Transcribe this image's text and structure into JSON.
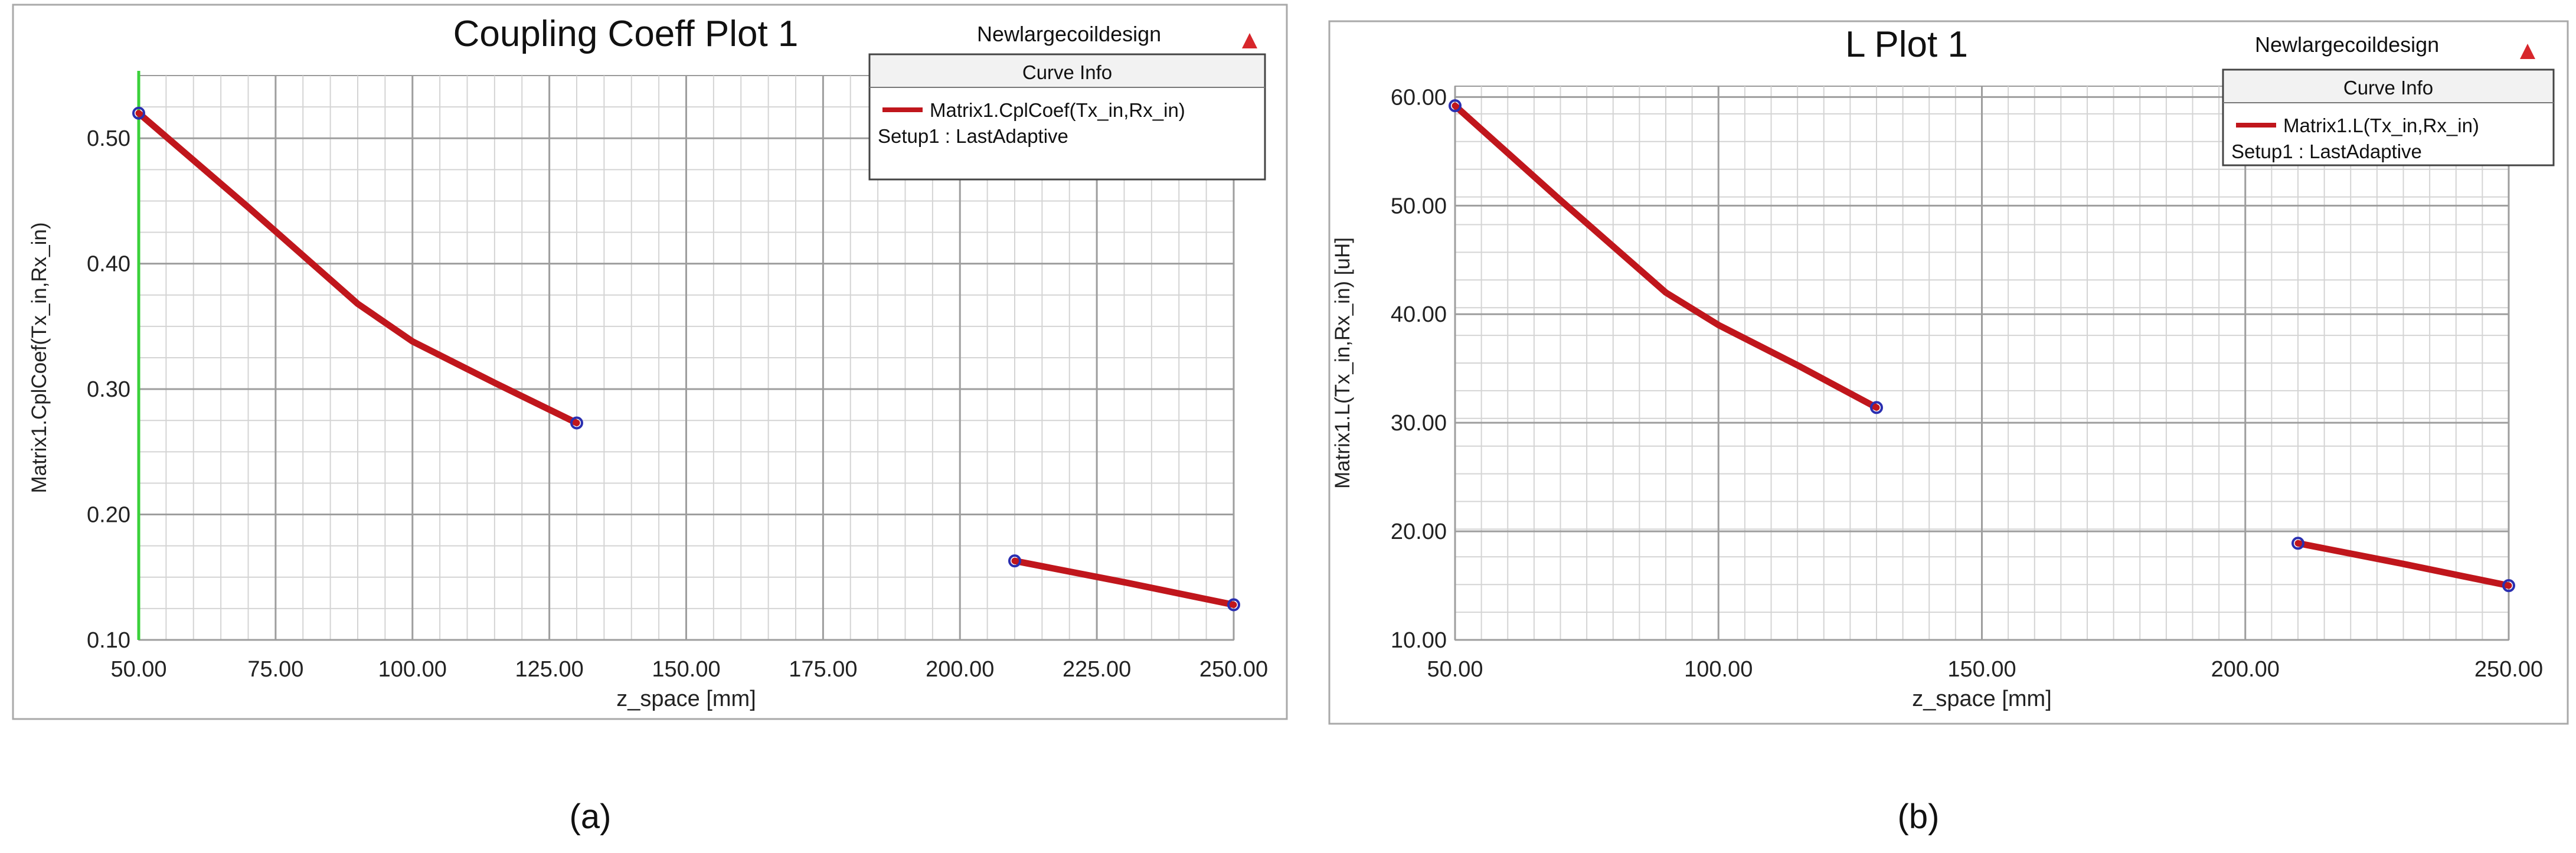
{
  "product": "Newlargecoildesign",
  "chart_data": [
    {
      "type": "line",
      "title": "Coupling Coeff Plot 1",
      "xlabel": "z_space [mm]",
      "ylabel": "Matrix1.CplCoef(Tx_in,Rx_in)",
      "xlim": [
        50,
        250
      ],
      "ylim": [
        0.1,
        0.55
      ],
      "x_ticks": [
        "50.00",
        "75.00",
        "100.00",
        "125.00",
        "150.00",
        "175.00",
        "200.00",
        "225.00",
        "250.00"
      ],
      "y_ticks": [
        "0.10",
        "0.20",
        "0.30",
        "0.40",
        "0.50"
      ],
      "grid": true,
      "legend": {
        "title": "Curve Info",
        "entries": [
          "Matrix1.CplCoef(Tx_in,Rx_in)"
        ],
        "setup": "Setup1 : LastAdaptive",
        "placement": "top-right"
      },
      "series": [
        {
          "name": "Matrix1.CplCoef(Tx_in,Rx_in)",
          "color": "#c0161c",
          "segments": [
            [
              [
                50,
                0.52
              ],
              [
                70,
                0.445
              ],
              [
                90,
                0.368
              ],
              [
                100,
                0.338
              ],
              [
                115,
                0.305
              ],
              [
                130,
                0.273
              ]
            ],
            [
              [
                210,
                0.163
              ],
              [
                230,
                0.146
              ],
              [
                250,
                0.128
              ]
            ]
          ]
        }
      ],
      "marker_color": "#2b2fb0",
      "caption": "(a)"
    },
    {
      "type": "line",
      "title": "L Plot 1",
      "xlabel": "z_space [mm]",
      "ylabel": "Matrix1.L(Tx_in,Rx_in) [uH]",
      "xlim": [
        50,
        250
      ],
      "ylim": [
        10,
        61
      ],
      "x_ticks": [
        "50.00",
        "100.00",
        "150.00",
        "200.00",
        "250.00"
      ],
      "y_ticks": [
        "10.00",
        "20.00",
        "30.00",
        "40.00",
        "50.00",
        "60.00"
      ],
      "grid": true,
      "legend": {
        "title": "Curve Info",
        "entries": [
          "Matrix1.L(Tx_in,Rx_in)"
        ],
        "setup": "Setup1 : LastAdaptive",
        "placement": "top-right"
      },
      "series": [
        {
          "name": "Matrix1.L(Tx_in,Rx_in)",
          "color": "#c0161c",
          "segments": [
            [
              [
                50,
                59.2
              ],
              [
                70,
                50.5
              ],
              [
                90,
                42.0
              ],
              [
                100,
                39.0
              ],
              [
                115,
                35.3
              ],
              [
                130,
                31.4
              ]
            ],
            [
              [
                210,
                18.9
              ],
              [
                230,
                17.0
              ],
              [
                250,
                15.0
              ]
            ]
          ]
        }
      ],
      "marker_color": "#2b2fb0",
      "caption": "(b)"
    }
  ]
}
